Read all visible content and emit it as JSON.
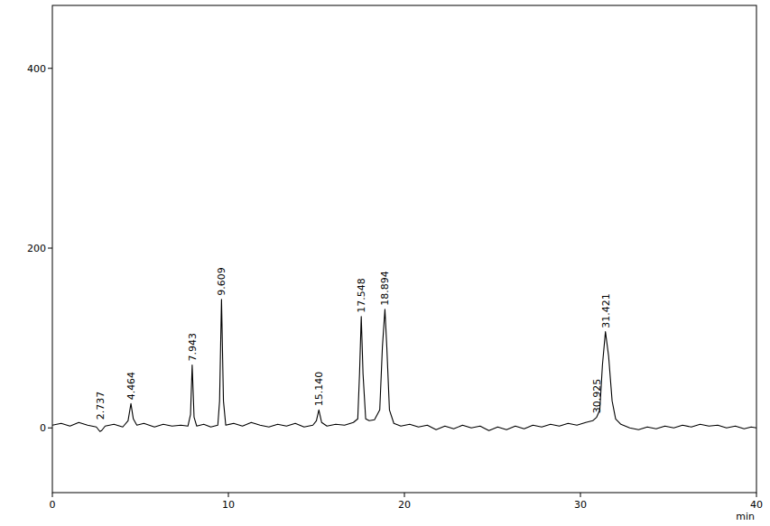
{
  "chart_data": {
    "type": "line",
    "xlabel": "min",
    "grid": false,
    "xlim": [
      0,
      40
    ],
    "xticks": [
      0,
      10,
      20,
      30,
      40
    ],
    "ylim": [
      -72,
      470
    ],
    "yticks": [
      0,
      200,
      400
    ],
    "x": [
      0,
      0.5,
      1,
      1.5,
      2,
      2.5,
      2.7,
      2.8,
      3.0,
      3.5,
      4.0,
      4.3,
      4.464,
      4.6,
      4.8,
      5.2,
      5.8,
      6.3,
      6.8,
      7.3,
      7.7,
      7.85,
      7.943,
      8.05,
      8.2,
      8.6,
      9.0,
      9.4,
      9.5,
      9.609,
      9.72,
      9.85,
      10.3,
      10.8,
      11.3,
      11.8,
      12.3,
      12.8,
      13.3,
      13.8,
      14.3,
      14.8,
      15.0,
      15.14,
      15.3,
      15.6,
      16.1,
      16.6,
      17.1,
      17.35,
      17.45,
      17.548,
      17.65,
      17.8,
      18.0,
      18.3,
      18.6,
      18.75,
      18.894,
      19.0,
      19.15,
      19.4,
      19.8,
      20.3,
      20.8,
      21.3,
      21.8,
      22.3,
      22.8,
      23.3,
      23.8,
      24.3,
      24.8,
      25.3,
      25.8,
      26.3,
      26.8,
      27.3,
      27.8,
      28.3,
      28.8,
      29.3,
      29.8,
      30.3,
      30.7,
      30.925,
      31.1,
      31.25,
      31.421,
      31.6,
      31.8,
      32.0,
      32.3,
      32.8,
      33.3,
      33.8,
      34.3,
      34.8,
      35.3,
      35.8,
      36.3,
      36.8,
      37.3,
      37.8,
      38.3,
      38.8,
      39.3,
      39.7,
      40
    ],
    "series": [
      {
        "color": "#000000",
        "values": [
          3,
          5,
          2,
          6,
          3,
          1,
          -4,
          -3,
          2,
          4,
          1,
          8,
          27,
          10,
          3,
          5,
          1,
          4,
          2,
          3,
          2,
          15,
          70,
          12,
          2,
          4,
          1,
          3,
          30,
          143,
          30,
          3,
          5,
          2,
          6,
          3,
          1,
          4,
          2,
          5,
          1,
          3,
          8,
          20,
          6,
          2,
          4,
          3,
          6,
          10,
          60,
          124,
          60,
          10,
          8,
          9,
          20,
          90,
          132,
          90,
          20,
          5,
          2,
          4,
          1,
          3,
          -2,
          2,
          -1,
          3,
          0,
          2,
          -3,
          1,
          -2,
          2,
          -1,
          3,
          1,
          4,
          2,
          5,
          3,
          6,
          8,
          12,
          20,
          70,
          107,
          80,
          30,
          10,
          4,
          0,
          -2,
          1,
          -1,
          2,
          0,
          3,
          1,
          4,
          2,
          3,
          0,
          2,
          -1,
          1,
          0
        ]
      }
    ],
    "annotations": [
      {
        "x": 2.737,
        "y": 5,
        "text": "2.737"
      },
      {
        "x": 4.464,
        "y": 27,
        "text": "4.464"
      },
      {
        "x": 7.943,
        "y": 70,
        "text": "7.943"
      },
      {
        "x": 9.609,
        "y": 143,
        "text": "9.609"
      },
      {
        "x": 15.14,
        "y": 20,
        "text": "15.140"
      },
      {
        "x": 17.548,
        "y": 124,
        "text": "17.548"
      },
      {
        "x": 18.894,
        "y": 132,
        "text": "18.894"
      },
      {
        "x": 30.925,
        "y": 12,
        "text": "30.925"
      },
      {
        "x": 31.421,
        "y": 107,
        "text": "31.421"
      }
    ]
  }
}
